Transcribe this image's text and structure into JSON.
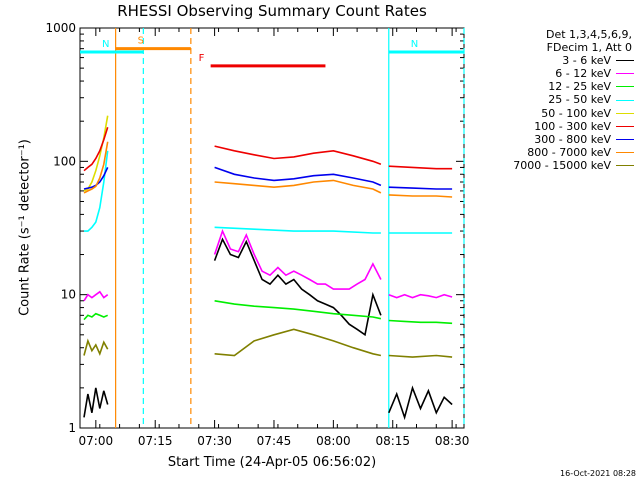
{
  "chart_data": {
    "type": "line",
    "title": "RHESSI Observing Summary Count Rates",
    "xlabel": "Start Time (24-Apr-05 06:56:02)",
    "ylabel": "Count Rate (s⁻¹ detector⁻¹)",
    "yscale": "log",
    "ylim": [
      1,
      1000
    ],
    "xlim": [
      "06:56",
      "08:33"
    ],
    "x_ticks": [
      "07:00",
      "07:15",
      "07:30",
      "07:45",
      "08:00",
      "08:15",
      "08:30"
    ],
    "y_ticks": [
      "1",
      "10",
      "100",
      "1000"
    ],
    "legend": {
      "header": [
        "Det 1,3,4,5,6,9,",
        "FDecim 1, Att 0"
      ],
      "position": "right"
    },
    "series": [
      {
        "name": "3 - 6 keV",
        "color": "#000000",
        "segments": [
          {
            "x": [
              "06:57",
              "06:58",
              "06:59",
              "07:00",
              "07:01",
              "07:02",
              "07:03"
            ],
            "y": [
              1.2,
              1.8,
              1.3,
              2.0,
              1.4,
              1.9,
              1.5
            ]
          },
          {
            "x": [
              "07:30",
              "07:32",
              "07:34",
              "07:36",
              "07:38",
              "07:40",
              "07:42",
              "07:44",
              "07:46",
              "07:48",
              "07:50",
              "07:52",
              "07:54",
              "07:56",
              "07:58",
              "08:00",
              "08:02",
              "08:04",
              "08:06",
              "08:08",
              "08:10",
              "08:12"
            ],
            "y": [
              18,
              26,
              20,
              19,
              25,
              18,
              13,
              12,
              14,
              12,
              13,
              11,
              10,
              9,
              8.5,
              8,
              7,
              6,
              5.5,
              5,
              10,
              7
            ]
          },
          {
            "x": [
              "08:14",
              "08:16",
              "08:18",
              "08:20",
              "08:22",
              "08:24",
              "08:26",
              "08:28",
              "08:30"
            ],
            "y": [
              1.3,
              1.8,
              1.2,
              2.0,
              1.4,
              1.9,
              1.3,
              1.7,
              1.5
            ]
          }
        ]
      },
      {
        "name": "6 - 12 keV",
        "color": "#ff00ff",
        "segments": [
          {
            "x": [
              "06:57",
              "06:58",
              "06:59",
              "07:00",
              "07:01",
              "07:02",
              "07:03"
            ],
            "y": [
              9,
              10,
              9.5,
              10,
              10.5,
              9.5,
              10
            ]
          },
          {
            "x": [
              "07:30",
              "07:32",
              "07:34",
              "07:36",
              "07:38",
              "07:40",
              "07:42",
              "07:44",
              "07:46",
              "07:48",
              "07:50",
              "07:52",
              "07:54",
              "07:56",
              "07:58",
              "08:00",
              "08:02",
              "08:04",
              "08:06",
              "08:08",
              "08:10",
              "08:12"
            ],
            "y": [
              20,
              30,
              22,
              21,
              28,
              20,
              15,
              14,
              16,
              14,
              15,
              14,
              13,
              12,
              12,
              11,
              11,
              11,
              12,
              13,
              17,
              13
            ]
          },
          {
            "x": [
              "08:14",
              "08:16",
              "08:18",
              "08:20",
              "08:22",
              "08:24",
              "08:26",
              "08:28",
              "08:30"
            ],
            "y": [
              10,
              9.5,
              10,
              9.5,
              10,
              9.8,
              9.5,
              10,
              9.6
            ]
          }
        ]
      },
      {
        "name": "12 - 25 keV",
        "color": "#00ee00",
        "segments": [
          {
            "x": [
              "06:57",
              "06:58",
              "06:59",
              "07:00",
              "07:01",
              "07:02",
              "07:03"
            ],
            "y": [
              6.5,
              7,
              6.8,
              7.2,
              7,
              6.8,
              7
            ]
          },
          {
            "x": [
              "07:30",
              "07:35",
              "07:40",
              "07:45",
              "07:50",
              "07:55",
              "08:00",
              "08:05",
              "08:10",
              "08:12"
            ],
            "y": [
              9,
              8.5,
              8.2,
              8,
              7.8,
              7.5,
              7.2,
              7,
              6.8,
              6.6
            ]
          },
          {
            "x": [
              "08:14",
              "08:18",
              "08:22",
              "08:26",
              "08:30"
            ],
            "y": [
              6.4,
              6.3,
              6.2,
              6.2,
              6.1
            ]
          }
        ]
      },
      {
        "name": "25 - 50 keV",
        "color": "#00ffff",
        "segments": [
          {
            "x": [
              "06:57",
              "06:58",
              "06:59",
              "07:00",
              "07:01",
              "07:02",
              "07:03"
            ],
            "y": [
              30,
              30,
              32,
              35,
              45,
              70,
              120
            ]
          },
          {
            "x": [
              "07:30",
              "07:40",
              "07:50",
              "08:00",
              "08:10",
              "08:12"
            ],
            "y": [
              32,
              31,
              30,
              30,
              29,
              29
            ]
          },
          {
            "x": [
              "08:14",
              "08:20",
              "08:26",
              "08:30"
            ],
            "y": [
              29,
              29,
              29,
              29
            ]
          }
        ]
      },
      {
        "name": "50 - 100 keV",
        "color": "#dddd00",
        "segments": [
          {
            "x": [
              "06:57",
              "06:58",
              "06:59",
              "07:00",
              "07:01",
              "07:02",
              "07:03"
            ],
            "y": [
              60,
              62,
              70,
              85,
              110,
              150,
              220
            ]
          }
        ]
      },
      {
        "name": "100 - 300 keV",
        "color": "#ee0000",
        "segments": [
          {
            "x": [
              "06:57",
              "06:58",
              "06:59",
              "07:00",
              "07:01",
              "07:02",
              "07:03"
            ],
            "y": [
              85,
              90,
              95,
              105,
              120,
              145,
              180
            ]
          },
          {
            "x": [
              "07:30",
              "07:35",
              "07:40",
              "07:45",
              "07:50",
              "07:55",
              "08:00",
              "08:05",
              "08:10",
              "08:12"
            ],
            "y": [
              130,
              120,
              112,
              105,
              108,
              115,
              120,
              110,
              100,
              95
            ]
          },
          {
            "x": [
              "08:14",
              "08:20",
              "08:26",
              "08:30"
            ],
            "y": [
              92,
              90,
              88,
              88
            ]
          }
        ]
      },
      {
        "name": "300 - 800 keV",
        "color": "#0000ee",
        "segments": [
          {
            "x": [
              "06:57",
              "06:58",
              "06:59",
              "07:00",
              "07:01",
              "07:02",
              "07:03"
            ],
            "y": [
              62,
              63,
              64,
              66,
              70,
              78,
              90
            ]
          },
          {
            "x": [
              "07:30",
              "07:35",
              "07:40",
              "07:45",
              "07:50",
              "07:55",
              "08:00",
              "08:05",
              "08:10",
              "08:12"
            ],
            "y": [
              90,
              80,
              75,
              72,
              74,
              78,
              80,
              75,
              70,
              66
            ]
          },
          {
            "x": [
              "08:14",
              "08:20",
              "08:26",
              "08:30"
            ],
            "y": [
              64,
              63,
              62,
              62
            ]
          }
        ]
      },
      {
        "name": "800 - 7000 keV",
        "color": "#ff8800",
        "segments": [
          {
            "x": [
              "06:57",
              "06:58",
              "06:59",
              "07:00",
              "07:01",
              "07:02",
              "07:03"
            ],
            "y": [
              58,
              60,
              62,
              65,
              75,
              95,
              140
            ]
          },
          {
            "x": [
              "07:30",
              "07:35",
              "07:40",
              "07:45",
              "07:50",
              "07:55",
              "08:00",
              "08:05",
              "08:10",
              "08:12"
            ],
            "y": [
              70,
              68,
              66,
              64,
              66,
              70,
              72,
              66,
              62,
              58
            ]
          },
          {
            "x": [
              "08:14",
              "08:20",
              "08:26",
              "08:30"
            ],
            "y": [
              56,
              55,
              55,
              54
            ]
          }
        ]
      },
      {
        "name": "7000 - 15000 keV",
        "color": "#808000",
        "segments": [
          {
            "x": [
              "06:57",
              "06:58",
              "06:59",
              "07:00",
              "07:01",
              "07:02",
              "07:03"
            ],
            "y": [
              3.5,
              4.5,
              3.8,
              4.2,
              3.6,
              4.4,
              3.9
            ]
          },
          {
            "x": [
              "07:30",
              "07:35",
              "07:40",
              "07:45",
              "07:50",
              "07:55",
              "08:00",
              "08:05",
              "08:10",
              "08:12"
            ],
            "y": [
              3.6,
              3.5,
              4.5,
              5,
              5.5,
              5,
              4.5,
              4,
              3.6,
              3.5
            ]
          },
          {
            "x": [
              "08:14",
              "08:20",
              "08:26",
              "08:30"
            ],
            "y": [
              3.5,
              3.4,
              3.5,
              3.4
            ]
          }
        ]
      }
    ],
    "annotations": [
      {
        "label": "S",
        "color": "#ff8800",
        "x_start": "07:05",
        "x_end": "07:24",
        "y": 700
      },
      {
        "label": "N",
        "color": "#00ffff",
        "x_start": "06:56",
        "x_end": "07:12",
        "y": 660
      },
      {
        "label": "N",
        "color": "#00ffff",
        "x_start": "08:14",
        "x_end": "08:33",
        "y": 660
      },
      {
        "label": "F",
        "color": "#ee0000",
        "x_start": "07:29",
        "x_end": "07:58",
        "y": 520
      }
    ],
    "vlines": [
      {
        "x": "07:05",
        "color": "#ff8800",
        "style": "solid"
      },
      {
        "x": "07:12",
        "color": "#00ffff",
        "style": "dashed"
      },
      {
        "x": "07:24",
        "color": "#ff8800",
        "style": "dashed"
      },
      {
        "x": "08:14",
        "color": "#00ffff",
        "style": "solid"
      },
      {
        "x": "08:33",
        "color": "#00ffff",
        "style": "dashed"
      }
    ]
  },
  "footer": "16-Oct-2021 08:28"
}
